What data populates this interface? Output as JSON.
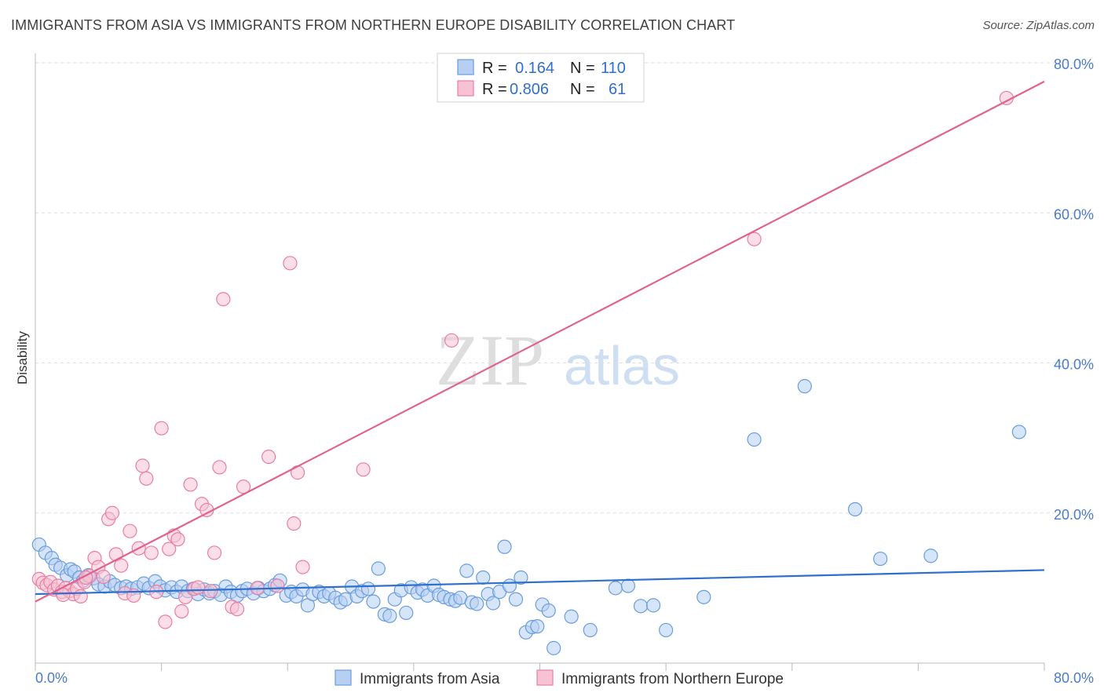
{
  "title": "IMMIGRANTS FROM ASIA VS IMMIGRANTS FROM NORTHERN EUROPE DISABILITY CORRELATION CHART",
  "source": "Source: ZipAtlas.com",
  "watermark": {
    "zip": "ZIP",
    "atlas": "atlas"
  },
  "colors": {
    "asia": "#6a9de0",
    "asia_fill": "#b7cff3",
    "asia_line": "#2f6fcd",
    "ne": "#e87fa2",
    "ne_fill": "#f7c3d4",
    "ne_line": "#e0628f",
    "tick_text": "#4a7cc7",
    "grid": "#dddddd"
  },
  "legend_top": {
    "rows": [
      {
        "r_label": "R = ",
        "r_value": "0.164",
        "n_label": "N = ",
        "n_value": "110"
      },
      {
        "r_label": "R = ",
        "r_value": "0.806",
        "n_label": "N = ",
        "n_value": "61"
      }
    ]
  },
  "legend_bottom": [
    "Immigrants from Asia",
    "Immigrants from Northern Europe"
  ],
  "chart_data": {
    "type": "scatter",
    "title": "IMMIGRANTS FROM ASIA VS IMMIGRANTS FROM NORTHERN EUROPE DISABILITY CORRELATION CHART",
    "xlabel": "",
    "ylabel": "Disability",
    "xlim": [
      0,
      80
    ],
    "ylim": [
      0,
      80
    ],
    "x_tick_labels": [
      "0.0%",
      "80.0%"
    ],
    "y_tick_labels": [
      "80.0%",
      "60.0%",
      "40.0%",
      "20.0%"
    ],
    "y_ticks": [
      80,
      60,
      40,
      20
    ],
    "grid": true,
    "legend_placement": "top-center",
    "series": [
      {
        "name": "Immigrants from Asia",
        "trend": [
          [
            0,
            9.2
          ],
          [
            80,
            12.4
          ]
        ],
        "points": [
          [
            0.3,
            15.8
          ],
          [
            0.8,
            14.7
          ],
          [
            1.3,
            14.0
          ],
          [
            1.6,
            13.1
          ],
          [
            2.0,
            12.7
          ],
          [
            2.5,
            11.7
          ],
          [
            2.8,
            12.5
          ],
          [
            3.1,
            12.2
          ],
          [
            3.5,
            11.4
          ],
          [
            3.8,
            11.0
          ],
          [
            4.2,
            11.7
          ],
          [
            4.6,
            11.3
          ],
          [
            5.0,
            10.5
          ],
          [
            5.5,
            10.2
          ],
          [
            5.9,
            10.9
          ],
          [
            6.3,
            10.4
          ],
          [
            6.8,
            10.0
          ],
          [
            7.2,
            10.2
          ],
          [
            7.6,
            9.9
          ],
          [
            8.1,
            10.1
          ],
          [
            8.6,
            10.6
          ],
          [
            9.0,
            10.0
          ],
          [
            9.5,
            10.9
          ],
          [
            9.9,
            10.2
          ],
          [
            10.3,
            9.7
          ],
          [
            10.8,
            10.1
          ],
          [
            11.2,
            9.5
          ],
          [
            11.6,
            10.2
          ],
          [
            12.1,
            9.6
          ],
          [
            12.5,
            9.9
          ],
          [
            12.9,
            9.2
          ],
          [
            13.4,
            9.8
          ],
          [
            13.8,
            9.3
          ],
          [
            14.2,
            9.6
          ],
          [
            14.7,
            9.1
          ],
          [
            15.1,
            10.2
          ],
          [
            15.5,
            9.5
          ],
          [
            16.0,
            9.0
          ],
          [
            16.4,
            9.6
          ],
          [
            16.8,
            9.9
          ],
          [
            17.3,
            9.3
          ],
          [
            17.7,
            10.0
          ],
          [
            18.1,
            9.6
          ],
          [
            18.6,
            9.9
          ],
          [
            19.0,
            10.4
          ],
          [
            19.4,
            11.0
          ],
          [
            19.9,
            9.0
          ],
          [
            20.3,
            9.5
          ],
          [
            20.7,
            8.9
          ],
          [
            21.2,
            9.8
          ],
          [
            21.6,
            7.7
          ],
          [
            22.0,
            9.2
          ],
          [
            22.5,
            9.5
          ],
          [
            22.9,
            8.9
          ],
          [
            23.3,
            9.3
          ],
          [
            23.8,
            8.7
          ],
          [
            24.2,
            8.1
          ],
          [
            24.6,
            8.5
          ],
          [
            25.1,
            10.2
          ],
          [
            25.5,
            8.9
          ],
          [
            25.9,
            9.6
          ],
          [
            26.4,
            9.9
          ],
          [
            26.8,
            8.2
          ],
          [
            27.2,
            12.6
          ],
          [
            27.7,
            6.5
          ],
          [
            28.1,
            6.3
          ],
          [
            28.5,
            8.5
          ],
          [
            29.0,
            9.7
          ],
          [
            29.4,
            6.7
          ],
          [
            29.8,
            10.1
          ],
          [
            30.3,
            9.4
          ],
          [
            30.7,
            9.8
          ],
          [
            31.1,
            9.0
          ],
          [
            31.6,
            10.3
          ],
          [
            32.0,
            9.1
          ],
          [
            32.4,
            8.8
          ],
          [
            32.9,
            8.5
          ],
          [
            33.3,
            8.3
          ],
          [
            33.7,
            8.7
          ],
          [
            34.2,
            12.3
          ],
          [
            34.6,
            8.1
          ],
          [
            35.0,
            7.9
          ],
          [
            35.5,
            11.4
          ],
          [
            35.9,
            9.2
          ],
          [
            36.3,
            8.0
          ],
          [
            36.8,
            9.5
          ],
          [
            37.2,
            15.5
          ],
          [
            37.6,
            10.3
          ],
          [
            38.1,
            8.5
          ],
          [
            38.5,
            11.4
          ],
          [
            38.9,
            4.1
          ],
          [
            39.4,
            4.8
          ],
          [
            39.8,
            4.9
          ],
          [
            40.2,
            7.8
          ],
          [
            40.7,
            7.0
          ],
          [
            41.1,
            2.0
          ],
          [
            42.5,
            6.2
          ],
          [
            44.0,
            4.4
          ],
          [
            46.0,
            10.0
          ],
          [
            47.0,
            10.3
          ],
          [
            48.0,
            7.6
          ],
          [
            50.0,
            4.4
          ],
          [
            53.0,
            8.8
          ],
          [
            57.0,
            29.8
          ],
          [
            61.0,
            36.9
          ],
          [
            65.0,
            20.5
          ],
          [
            67.0,
            13.9
          ],
          [
            71.0,
            14.3
          ],
          [
            78.0,
            30.8
          ],
          [
            49.0,
            7.7
          ]
        ]
      },
      {
        "name": "Immigrants from Northern Europe",
        "trend": [
          [
            0,
            8.2
          ],
          [
            80,
            77.5
          ]
        ],
        "points": [
          [
            0.3,
            11.2
          ],
          [
            0.6,
            10.7
          ],
          [
            0.9,
            10.4
          ],
          [
            1.2,
            10.8
          ],
          [
            1.5,
            9.8
          ],
          [
            1.8,
            10.3
          ],
          [
            2.1,
            9.5
          ],
          [
            2.4,
            10.0
          ],
          [
            2.7,
            9.6
          ],
          [
            3.0,
            9.2
          ],
          [
            3.3,
            9.9
          ],
          [
            3.6,
            8.9
          ],
          [
            3.9,
            10.8
          ],
          [
            4.3,
            11.6
          ],
          [
            4.7,
            14.0
          ],
          [
            5.0,
            12.8
          ],
          [
            5.4,
            11.5
          ],
          [
            5.8,
            19.2
          ],
          [
            6.1,
            20.0
          ],
          [
            6.4,
            14.5
          ],
          [
            6.8,
            13.0
          ],
          [
            7.1,
            9.3
          ],
          [
            7.5,
            17.6
          ],
          [
            7.8,
            9.0
          ],
          [
            8.2,
            15.3
          ],
          [
            8.5,
            26.3
          ],
          [
            8.8,
            24.6
          ],
          [
            9.2,
            14.7
          ],
          [
            9.6,
            9.5
          ],
          [
            10.0,
            31.3
          ],
          [
            10.3,
            5.5
          ],
          [
            10.6,
            15.2
          ],
          [
            11.0,
            17.0
          ],
          [
            11.3,
            16.5
          ],
          [
            11.6,
            6.9
          ],
          [
            11.9,
            8.8
          ],
          [
            12.3,
            23.8
          ],
          [
            12.6,
            9.9
          ],
          [
            12.9,
            10.1
          ],
          [
            13.2,
            21.2
          ],
          [
            13.6,
            20.4
          ],
          [
            13.9,
            9.6
          ],
          [
            14.2,
            14.7
          ],
          [
            14.6,
            26.1
          ],
          [
            14.9,
            48.5
          ],
          [
            15.6,
            7.5
          ],
          [
            16.0,
            7.2
          ],
          [
            16.5,
            23.5
          ],
          [
            17.6,
            10.0
          ],
          [
            18.5,
            27.5
          ],
          [
            19.2,
            10.3
          ],
          [
            20.2,
            53.3
          ],
          [
            20.5,
            18.6
          ],
          [
            20.8,
            25.4
          ],
          [
            21.2,
            12.8
          ],
          [
            26.0,
            25.8
          ],
          [
            33.0,
            43.0
          ],
          [
            57.0,
            56.5
          ],
          [
            77.0,
            75.3
          ],
          [
            2.2,
            9.1
          ],
          [
            4.0,
            11.4
          ]
        ]
      }
    ]
  }
}
